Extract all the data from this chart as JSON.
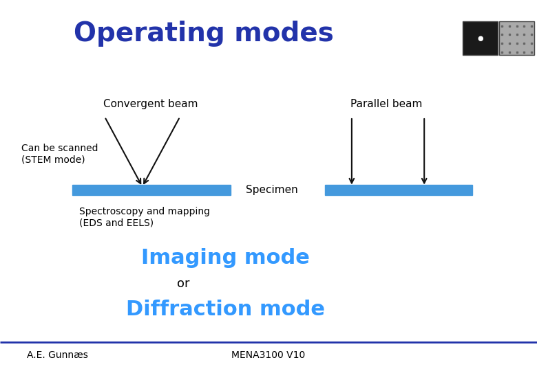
{
  "title": "Operating modes",
  "title_color": "#2233aa",
  "title_fontsize": 28,
  "bg_color": "#ffffff",
  "convergent_beam_label": "Convergent beam",
  "parallel_beam_label": "Parallel beam",
  "can_be_scanned_label": "Can be scanned\n(STEM mode)",
  "specimen_label": "Specimen",
  "spectroscopy_label": "Spectroscopy and mapping\n(EDS and EELS)",
  "imaging_mode_label": "Imaging mode",
  "or_label": "or",
  "diffraction_mode_label": "Diffraction mode",
  "footer_left": "A.E. Gunnæs",
  "footer_right": "MENA3100 V10",
  "specimen_color": "#4499dd",
  "mode_text_color": "#3399ff",
  "arrow_color": "#111111",
  "label_fontsize": 11,
  "mode_fontsize": 22,
  "footer_fontsize": 10,
  "or_fontsize": 13,
  "small_fontsize": 10,
  "footer_line_color": "#2233aa"
}
